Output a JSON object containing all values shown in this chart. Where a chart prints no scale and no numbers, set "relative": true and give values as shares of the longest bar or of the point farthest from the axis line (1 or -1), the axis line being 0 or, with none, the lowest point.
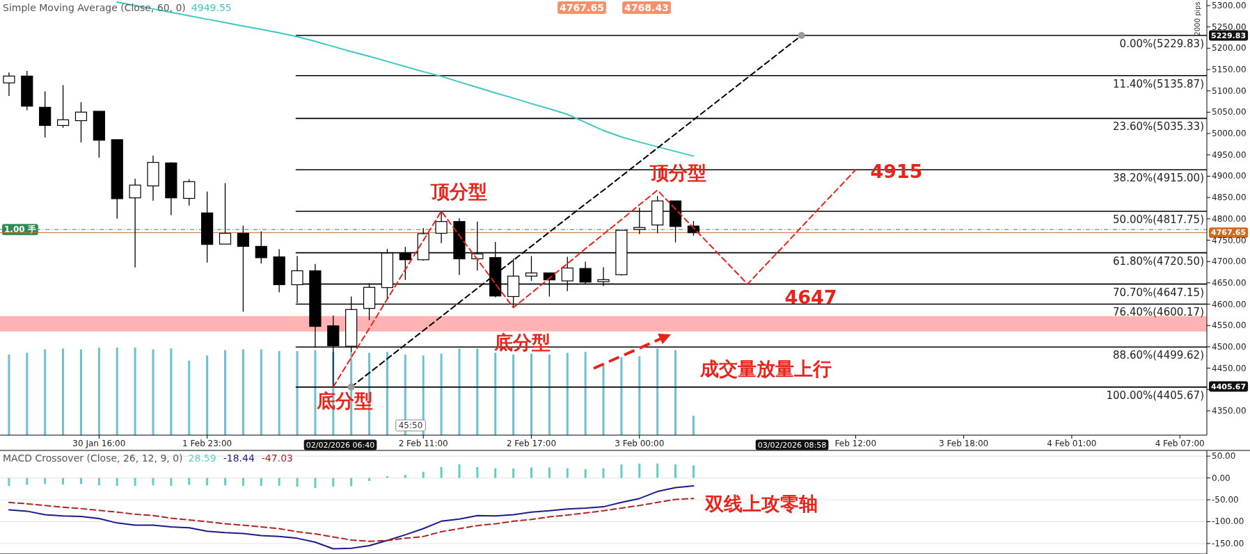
{
  "chart_data": [
    {
      "type": "candlestick",
      "title": "Simple Moving Average (Close, 60, 0)",
      "categories": [
        null,
        null,
        null,
        null,
        null,
        "30 Jan 16:00",
        null,
        null,
        null,
        null,
        null,
        "1 Feb 23:00",
        null,
        null,
        null,
        null,
        null,
        null,
        null,
        null,
        null,
        null,
        null,
        "2 Feb 11:00",
        null,
        null,
        null,
        null,
        null,
        "2 Feb 17:00",
        null,
        null,
        null,
        null,
        null,
        "3 Feb 00:00",
        null,
        null,
        null,
        null,
        null,
        null,
        null,
        null,
        null,
        null,
        null,
        "Feb 12:00",
        null,
        null,
        null,
        null,
        null,
        "3 Feb 18:00",
        null,
        null,
        null,
        null,
        null,
        "4 Feb 01:00",
        null,
        null,
        null,
        null,
        null,
        "4 Feb 07:00",
        null
      ],
      "ohlc": [
        [
          5118.7,
          5143.3,
          5088.1,
          5134.7
        ],
        [
          5134.7,
          5146.6,
          5054.8,
          5064.1
        ],
        [
          5061.5,
          5098.7,
          4990.9,
          5018.9
        ],
        [
          5018.9,
          5113.4,
          5013.6,
          5032.2
        ],
        [
          5030.2,
          5073.5,
          4979.0,
          5050.2
        ],
        [
          5052.2,
          5052.2,
          4943.7,
          4984.3
        ],
        [
          4985.6,
          4985.6,
          4800.7,
          4847.2
        ],
        [
          4849.2,
          4893.8,
          4686.2,
          4879.2
        ],
        [
          4877.2,
          4948.4,
          4842.6,
          4932.4
        ],
        [
          4931.1,
          4932.4,
          4808.7,
          4849.2
        ],
        [
          4847.9,
          4892.5,
          4831.3,
          4887.2
        ],
        [
          4813.9,
          4863.9,
          4697.5,
          4740.1
        ],
        [
          4740.8,
          4883.8,
          4740.8,
          4766.1
        ],
        [
          4766.1,
          4784.0,
          4582.4,
          4735.5
        ],
        [
          4735.5,
          4770.7,
          4695.5,
          4708.9
        ],
        [
          4710.9,
          4728.8,
          4627.7,
          4645.7
        ],
        [
          4645.7,
          4712.9,
          4602.4,
          4678.3
        ],
        [
          4678.3,
          4694.2,
          4497.9,
          4547.9
        ],
        [
          4549.2,
          4573.2,
          4405.7,
          4502.6
        ],
        [
          4501.3,
          4618.0,
          4487.0,
          4587.5
        ],
        [
          4590.0,
          4649.0,
          4562.5,
          4639.5
        ],
        [
          4638.9,
          4729.7,
          4612.1,
          4719.8
        ],
        [
          4719.8,
          4734.3,
          4656.9,
          4704.1
        ],
        [
          4704.1,
          4778.0,
          4702.3,
          4765.2
        ],
        [
          4766.3,
          4815.8,
          4743.1,
          4793.7
        ],
        [
          4793.7,
          4801.3,
          4668.6,
          4706.4
        ],
        [
          4706.4,
          4793.7,
          4679.0,
          4718.0
        ],
        [
          4709.3,
          4746.0,
          4616.2,
          4619.1
        ],
        [
          4618.0,
          4707.0,
          4594.6,
          4665.8
        ],
        [
          4665.8,
          4712.8,
          4654.6,
          4673.2
        ],
        [
          4673.2,
          4673.2,
          4617.9,
          4656.9
        ],
        [
          4654.6,
          4711.1,
          4630.7,
          4684.8
        ],
        [
          4683.7,
          4699.4,
          4648.0,
          4651.7
        ],
        [
          4652.8,
          4686.6,
          4642.4,
          4657.5
        ],
        [
          4669.1,
          4773.3,
          4666.8,
          4773.3
        ],
        [
          4775.1,
          4826.3,
          4764.5,
          4779.8
        ],
        [
          4785.6,
          4853.7,
          4766.3,
          4842.0
        ],
        [
          4842.0,
          4842.0,
          4744.8,
          4782.1
        ],
        [
          4783.2,
          4794.9,
          4760.5,
          4767.6
        ],
        null,
        null,
        null,
        null,
        null,
        null,
        null,
        null,
        null,
        null,
        null,
        null,
        null,
        null,
        null,
        null,
        null,
        null,
        null,
        null,
        null,
        null,
        null,
        null,
        null,
        null,
        null,
        null
      ],
      "series": [
        {
          "type": "line",
          "name": "4949.55",
          "color": "#3cc8c0",
          "values": [
            null,
            null,
            null,
            null,
            null,
            null,
            5308,
            5300,
            5292,
            5284,
            5276,
            5268,
            5260,
            5252,
            5244,
            5236,
            5227,
            5216,
            5204,
            5192,
            5181,
            5169,
            5157,
            5145,
            5134,
            5121,
            5108,
            5095,
            5083,
            5070,
            5058,
            5045,
            5026,
            5007,
            4992,
            4980,
            4969,
            4958,
            4947,
            null,
            null,
            null,
            null,
            null,
            null,
            null,
            null,
            null,
            null,
            null,
            null,
            null,
            null,
            null,
            null,
            null,
            null,
            null,
            null,
            null,
            null,
            null,
            null,
            null,
            null,
            null,
            null
          ]
        },
        {
          "type": "line",
          "color": "#e8231a",
          "line_style": "dashed",
          "values": [
            null,
            null,
            null,
            null,
            null,
            null,
            null,
            null,
            null,
            null,
            null,
            null,
            null,
            null,
            null,
            null,
            null,
            null,
            4406,
            4475,
            4543,
            4612,
            4681,
            4749,
            4818,
            4761,
            4705,
            4648,
            4592,
            4626,
            4661,
            4695,
            4730,
            4764,
            4798,
            4833,
            4867,
            4823,
            4779,
            4735,
            4691,
            4647,
            4692,
            4736,
            4781,
            4826,
            4870,
            4915,
            null,
            null,
            null,
            null,
            null,
            null,
            null,
            null,
            null,
            null,
            null,
            null,
            null,
            null,
            null,
            null,
            null,
            null,
            null
          ]
        },
        {
          "type": "line",
          "color": "#000000",
          "line_style": "dashed",
          "values": [
            null,
            null,
            null,
            null,
            null,
            null,
            null,
            null,
            null,
            null,
            null,
            null,
            null,
            null,
            null,
            null,
            null,
            null,
            null,
            4406,
            4439,
            4472,
            4505,
            4538,
            4571,
            4604,
            4637,
            4670,
            4703,
            4736,
            4769,
            4802,
            4835,
            4867,
            4900,
            4933,
            4966,
            4999,
            5032,
            5065,
            5098,
            5131,
            5164,
            5197,
            5230,
            null,
            null,
            null,
            null,
            null,
            null,
            null,
            null,
            null,
            null,
            null,
            null,
            null,
            null,
            null,
            null,
            null,
            null,
            null,
            null,
            null,
            null
          ]
        }
      ],
      "ylim": [
        4293,
        5313
      ],
      "yticks": [
        {
          "value": 4350,
          "label": "4350.00"
        },
        {
          "value": 4400,
          "label": null
        },
        {
          "value": 4450,
          "label": "4450.00"
        },
        {
          "value": 4500,
          "label": "4500.00"
        },
        {
          "value": 4550,
          "label": "4550.00"
        },
        {
          "value": 4600,
          "label": "4600.00"
        },
        {
          "value": 4650,
          "label": "4650.00"
        },
        {
          "value": 4700,
          "label": "4700.00"
        },
        {
          "value": 4750,
          "label": "4750.00"
        },
        {
          "value": 4800,
          "label": "4800.00"
        },
        {
          "value": 4850,
          "label": "4850.00"
        },
        {
          "value": 4900,
          "label": "4900.00"
        },
        {
          "value": 4950,
          "label": "4950.00"
        },
        {
          "value": 5000,
          "label": "5000.00"
        },
        {
          "value": 5050,
          "label": "5050.00"
        },
        {
          "value": 5100,
          "label": "5100.00"
        },
        {
          "value": 5150,
          "label": "5150.00"
        },
        {
          "value": 5200,
          "label": "5200.00"
        },
        {
          "value": 5250,
          "label": "5250.00"
        },
        {
          "value": 5300,
          "label": "5300.00"
        }
      ],
      "bands": [
        {
          "axis": "y",
          "from": 4536,
          "to": 4572,
          "color": "#ffb3b3"
        }
      ],
      "ref_lines": [
        {
          "axis": "y",
          "value": 5229.83,
          "label": "0.00%(5229.83)"
        },
        {
          "axis": "y",
          "value": 5135.87,
          "label": "11.40%(5135.87)"
        },
        {
          "axis": "y",
          "value": 5035.33,
          "label": "23.60%(5035.33)"
        },
        {
          "axis": "y",
          "value": 4915.0,
          "label": "38.20%(4915.00)"
        },
        {
          "axis": "y",
          "value": 4817.75,
          "label": "50.00%(4817.75)"
        },
        {
          "axis": "y",
          "value": 4720.5,
          "label": "61.80%(4720.50)"
        },
        {
          "axis": "y",
          "value": 4647.15,
          "label": "70.70%(4647.15)"
        },
        {
          "axis": "y",
          "value": 4600.17,
          "label": "76.40%(4600.17)"
        },
        {
          "axis": "y",
          "value": 4499.62,
          "label": "88.60%(4499.62)"
        },
        {
          "axis": "y",
          "value": 4405.67,
          "label": "100.00%(4405.67)"
        },
        {
          "axis": "y",
          "value": 4775,
          "label": "1.00 手",
          "color": "#2e8b57",
          "line_style": "dashed"
        },
        {
          "axis": "y",
          "value": 4767.65,
          "label": "4767.65",
          "color": "#d2691e"
        }
      ],
      "annotations": [
        "顶分型",
        "顶分型",
        "底分型",
        "底分型",
        "4915",
        "4647",
        "成交量放量上行",
        "5229.83",
        "4405.67",
        "02/02/2026 06:40",
        "03/02/2026 08:58",
        "2000 pips",
        "45:50",
        "4767.65",
        "4768.43"
      ]
    },
    {
      "type": "bar",
      "relative": true,
      "color": "#6cc0d0",
      "categories": [
        null,
        null,
        null,
        null,
        null,
        null,
        null,
        null,
        null,
        null,
        null,
        null,
        null,
        null,
        null,
        null,
        null,
        null,
        null,
        null,
        null,
        null,
        null,
        null,
        null,
        null,
        null,
        null,
        null,
        null,
        null,
        null,
        null,
        null,
        null,
        null,
        null,
        null,
        null
      ],
      "values": [
        0.92,
        0.94,
        0.98,
        0.99,
        0.98,
        1,
        1,
        1,
        0.98,
        0.99,
        0.85,
        0.91,
        0.97,
        0.98,
        0.98,
        0.96,
        0.96,
        0.97,
        0.95,
        0.94,
        0.94,
        0.95,
        0.92,
        0.91,
        0.93,
        0.99,
        0.99,
        0.94,
        0.92,
        0.93,
        0.92,
        0.94,
        0.95,
        0.8,
        0.89,
        0.9,
        0.99,
        0.97,
        0.22
      ]
    },
    {
      "type": "line",
      "title": "MACD Crossover (Close, 26, 12, 9, 0)",
      "categories": [
        null,
        null,
        null,
        null,
        null,
        null,
        null,
        null,
        null,
        null,
        null,
        null,
        null,
        null,
        null,
        null,
        null,
        null,
        null,
        null,
        null,
        null,
        null,
        null,
        null,
        null,
        null,
        null,
        null,
        null,
        null,
        null,
        null,
        null,
        null,
        null,
        null,
        null,
        null
      ],
      "series": [
        {
          "type": "bar",
          "name": "28.59",
          "color": "#5fcfc6",
          "values": [
            -18,
            -16,
            -14,
            -15,
            -14,
            -17,
            -18,
            -18,
            -17,
            -18,
            -16,
            -17,
            -17,
            -18,
            -18,
            -18,
            -20,
            -23,
            -20,
            -19,
            -7,
            4,
            7,
            14,
            25,
            31,
            25,
            22,
            22,
            24,
            24,
            22,
            20,
            22,
            31,
            33,
            33,
            31,
            29
          ]
        },
        {
          "type": "line",
          "name": "-18.44",
          "color": "#1a1a8c",
          "values": [
            -73,
            -76,
            -84,
            -87,
            -88,
            -93,
            -103,
            -108,
            -108,
            -112,
            -114,
            -122,
            -125,
            -127,
            -132,
            -134,
            -138,
            -147,
            -162,
            -161,
            -155,
            -143,
            -130,
            -116,
            -99,
            -94,
            -86,
            -87,
            -84,
            -78,
            -75,
            -71,
            -69,
            -66,
            -56,
            -47,
            -31,
            -22,
            -18
          ]
        },
        {
          "type": "line",
          "name": "-47.03",
          "color": "#b22222",
          "line_style": "dashed",
          "values": [
            -56,
            -59,
            -63,
            -67,
            -70,
            -74,
            -78,
            -83,
            -86,
            -92,
            -96,
            -100,
            -105,
            -108,
            -112,
            -116,
            -123,
            -128,
            -135,
            -142,
            -145,
            -143,
            -138,
            -134,
            -123,
            -116,
            -109,
            -105,
            -99,
            -95,
            -89,
            -85,
            -80,
            -75,
            -69,
            -63,
            -56,
            -49,
            -47
          ]
        }
      ],
      "ylim": [
        -174,
        63
      ],
      "yticks": [
        {
          "value": 50,
          "label": "50.00"
        },
        {
          "value": 0,
          "label": "0.00"
        },
        {
          "value": -50,
          "label": "-50.00"
        },
        {
          "value": -100,
          "label": "-100.00"
        },
        {
          "value": -150,
          "label": "-150.00"
        }
      ],
      "grid": "y",
      "tick_labels": "y",
      "annotations": [
        "双线上攻零轴"
      ]
    }
  ]
}
